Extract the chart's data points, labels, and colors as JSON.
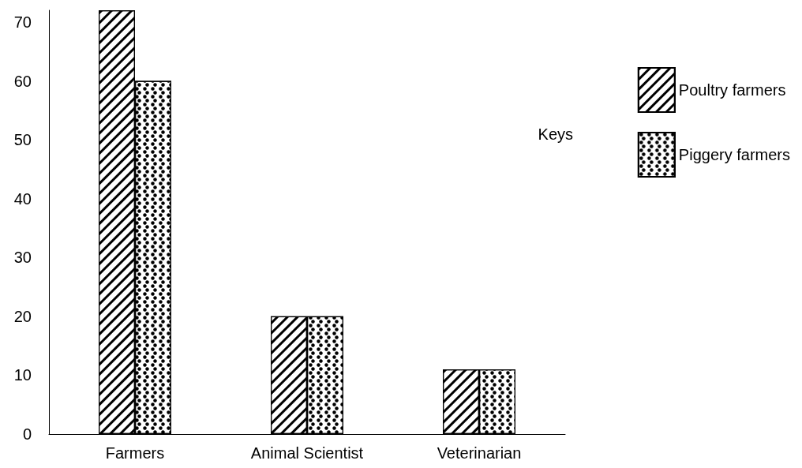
{
  "chart_data": {
    "type": "bar",
    "categories": [
      "Farmers",
      "Animal Scientist",
      "Veterinarian"
    ],
    "series": [
      {
        "name": "Poultry farmers",
        "color": "#000000",
        "values": [
          72,
          20,
          11
        ]
      },
      {
        "name": "Piggery farmers",
        "color": "#000000",
        "values": [
          60,
          20,
          11
        ]
      }
    ],
    "ylim": [
      0,
      72
    ],
    "yticks": [
      0,
      10,
      20,
      30,
      40,
      50,
      60,
      70
    ],
    "grid": false,
    "legend": "right",
    "legend_title": "Keys"
  }
}
